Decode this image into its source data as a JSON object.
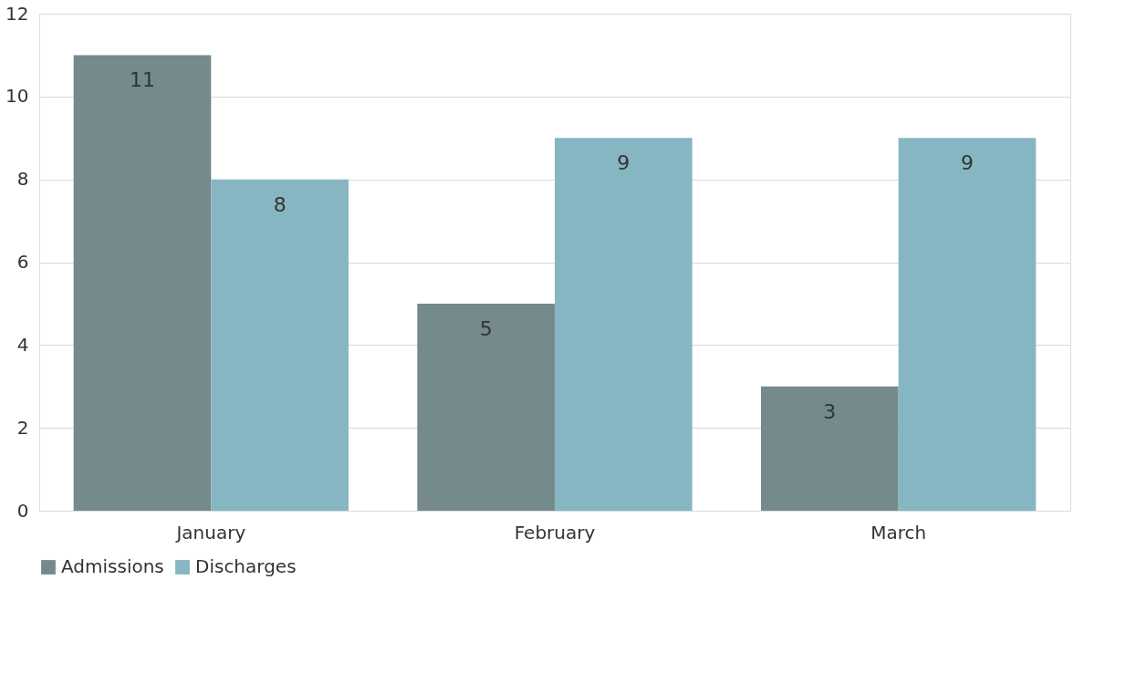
{
  "chart_data": {
    "type": "bar",
    "categories": [
      "January",
      "February",
      "March"
    ],
    "series": [
      {
        "name": "Admissions",
        "color": "#748a8c",
        "values": [
          11,
          5,
          3
        ]
      },
      {
        "name": "Discharges",
        "color": "#86b6c2",
        "values": [
          8,
          9,
          9
        ]
      }
    ],
    "ylim": [
      0,
      12
    ],
    "yticks": [
      0,
      2,
      4,
      6,
      8,
      10,
      12
    ],
    "grid": "y",
    "legend": "bottom",
    "data_labels": true
  }
}
